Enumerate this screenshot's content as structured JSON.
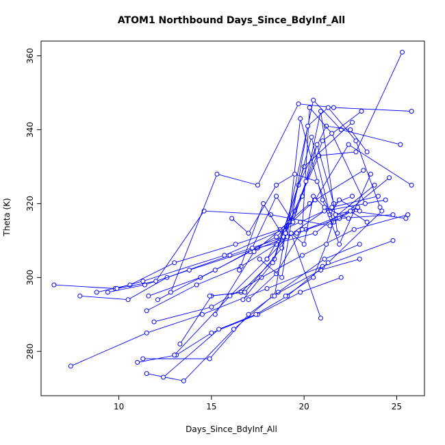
{
  "chart_data": {
    "type": "line",
    "title": "ATOM1 Northbound Days_Since_BdyInf_All",
    "xlabel": "Days_Since_BdyInf_All",
    "ylabel": "Theta (K)",
    "xlim": [
      5.8,
      26.5
    ],
    "ylim": [
      268,
      364
    ],
    "xticks": [
      10,
      15,
      20,
      25
    ],
    "yticks": [
      280,
      300,
      320,
      340,
      360
    ],
    "grid": false,
    "legend": "none",
    "marker": "open-circle",
    "color": "#0000ff",
    "segments": [
      [
        [
          6.5,
          298
        ],
        [
          9.8,
          297
        ],
        [
          11.3,
          299
        ],
        [
          15.7,
          306
        ],
        [
          19.8,
          315
        ],
        [
          21.5,
          319
        ],
        [
          24.0,
          322
        ]
      ],
      [
        [
          7.9,
          295
        ],
        [
          10.5,
          294
        ],
        [
          12.6,
          300
        ],
        [
          16.0,
          306
        ],
        [
          20.1,
          313
        ],
        [
          22.6,
          318
        ],
        [
          25.5,
          316
        ]
      ],
      [
        [
          7.4,
          276
        ],
        [
          11.5,
          285
        ],
        [
          14.5,
          290
        ],
        [
          18.0,
          297
        ],
        [
          21.0,
          303
        ],
        [
          24.8,
          310
        ]
      ],
      [
        [
          8.8,
          296
        ],
        [
          10.6,
          298
        ],
        [
          13.0,
          304
        ],
        [
          16.3,
          309
        ],
        [
          18.7,
          313
        ],
        [
          20.3,
          320
        ],
        [
          23.2,
          329
        ]
      ],
      [
        [
          9.4,
          296
        ],
        [
          11.4,
          298
        ],
        [
          13.8,
          302
        ],
        [
          17.5,
          308
        ],
        [
          20.6,
          312
        ],
        [
          23.8,
          325
        ]
      ],
      [
        [
          9.9,
          297
        ],
        [
          12.0,
          299
        ],
        [
          14.6,
          318
        ],
        [
          18.2,
          317
        ],
        [
          21.4,
          314
        ],
        [
          24.6,
          327
        ]
      ],
      [
        [
          11.0,
          277
        ],
        [
          13.1,
          279
        ],
        [
          15.0,
          285
        ],
        [
          17.5,
          290
        ],
        [
          19.8,
          296
        ],
        [
          22.0,
          300
        ]
      ],
      [
        [
          11.3,
          278
        ],
        [
          14.9,
          278
        ],
        [
          17.0,
          290
        ],
        [
          18.6,
          296
        ],
        [
          21.1,
          305
        ],
        [
          23.0,
          309
        ]
      ],
      [
        [
          11.5,
          274
        ],
        [
          13.5,
          272
        ],
        [
          16.2,
          286
        ],
        [
          18.3,
          295
        ],
        [
          20.9,
          302
        ],
        [
          23.0,
          305
        ]
      ],
      [
        [
          12.4,
          273
        ],
        [
          15.4,
          286
        ],
        [
          17.4,
          290
        ],
        [
          19.1,
          295
        ],
        [
          21.3,
          304
        ],
        [
          24.2,
          318
        ]
      ],
      [
        [
          11.5,
          291
        ],
        [
          14.2,
          298
        ],
        [
          16.6,
          303
        ],
        [
          18.5,
          309
        ],
        [
          21.1,
          318
        ],
        [
          24.4,
          321
        ]
      ],
      [
        [
          11.6,
          295
        ],
        [
          14.4,
          300
        ],
        [
          17.1,
          307
        ],
        [
          19.6,
          312
        ],
        [
          21.9,
          316
        ],
        [
          24.8,
          317
        ]
      ],
      [
        [
          11.9,
          288
        ],
        [
          15.0,
          292
        ],
        [
          17.7,
          300
        ],
        [
          19.9,
          306
        ],
        [
          22.7,
          313
        ],
        [
          25.6,
          317
        ]
      ],
      [
        [
          12.1,
          294
        ],
        [
          15.2,
          302
        ],
        [
          18.5,
          311
        ],
        [
          20.6,
          321
        ],
        [
          22.4,
          336
        ],
        [
          25.8,
          325
        ]
      ],
      [
        [
          12.8,
          296
        ],
        [
          15.3,
          328
        ],
        [
          17.5,
          325
        ],
        [
          19.7,
          347
        ],
        [
          21.6,
          346
        ],
        [
          25.8,
          345
        ]
      ],
      [
        [
          13.3,
          282
        ],
        [
          15.0,
          295
        ],
        [
          16.6,
          296
        ],
        [
          18.4,
          305
        ],
        [
          20.0,
          330
        ],
        [
          22.6,
          342
        ]
      ],
      [
        [
          13.0,
          279
        ],
        [
          16.0,
          295
        ],
        [
          18.0,
          305
        ],
        [
          19.5,
          318
        ],
        [
          21.0,
          337
        ],
        [
          23.1,
          345
        ]
      ],
      [
        [
          14.9,
          295
        ],
        [
          16.8,
          296
        ],
        [
          18.8,
          308
        ],
        [
          20.5,
          348
        ],
        [
          22.0,
          340
        ],
        [
          25.2,
          336
        ]
      ],
      [
        [
          15.2,
          290
        ],
        [
          17.3,
          307
        ],
        [
          19.2,
          315
        ],
        [
          20.8,
          333
        ],
        [
          22.8,
          334
        ],
        [
          25.3,
          361
        ]
      ],
      [
        [
          16.7,
          294
        ],
        [
          18.3,
          304
        ],
        [
          19.7,
          325
        ],
        [
          21.2,
          341
        ],
        [
          22.5,
          340
        ],
        [
          23.4,
          334
        ]
      ],
      [
        [
          16.5,
          302
        ],
        [
          17.8,
          320
        ],
        [
          18.9,
          311
        ],
        [
          19.9,
          322
        ],
        [
          20.7,
          336
        ],
        [
          21.6,
          320
        ],
        [
          22.6,
          322
        ]
      ],
      [
        [
          17.0,
          294
        ],
        [
          18.5,
          301
        ],
        [
          19.9,
          313
        ],
        [
          20.3,
          346
        ],
        [
          21.5,
          339
        ],
        [
          23.3,
          320
        ]
      ],
      [
        [
          17.2,
          308
        ],
        [
          18.5,
          322
        ],
        [
          19.4,
          315
        ],
        [
          20.1,
          326
        ],
        [
          20.9,
          345
        ],
        [
          21.8,
          312
        ]
      ],
      [
        [
          18.0,
          305
        ],
        [
          19.1,
          311
        ],
        [
          19.8,
          343
        ],
        [
          21.0,
          321
        ],
        [
          21.9,
          309
        ],
        [
          23.6,
          328
        ]
      ],
      [
        [
          17.6,
          305
        ],
        [
          18.8,
          300
        ],
        [
          20.2,
          341
        ],
        [
          21.3,
          346
        ],
        [
          22.8,
          337
        ],
        [
          24.1,
          319
        ]
      ],
      [
        [
          18.4,
          295
        ],
        [
          19.0,
          312
        ],
        [
          20.4,
          338
        ],
        [
          21.4,
          317
        ],
        [
          21.9,
          321
        ],
        [
          23.0,
          318
        ]
      ],
      [
        [
          16.1,
          316
        ],
        [
          17.0,
          312
        ],
        [
          18.5,
          325
        ],
        [
          19.5,
          328
        ],
        [
          20.7,
          326
        ],
        [
          21.6,
          315
        ],
        [
          22.9,
          319
        ]
      ],
      [
        [
          20.9,
          289
        ],
        [
          19.3,
          312
        ],
        [
          20.0,
          309
        ],
        [
          20.5,
          322
        ],
        [
          21.1,
          319
        ],
        [
          22.4,
          316
        ]
      ],
      [
        [
          19.0,
          295
        ],
        [
          20.5,
          300
        ],
        [
          21.2,
          309
        ],
        [
          21.7,
          317
        ],
        [
          22.5,
          318
        ],
        [
          23.4,
          315
        ]
      ]
    ]
  }
}
